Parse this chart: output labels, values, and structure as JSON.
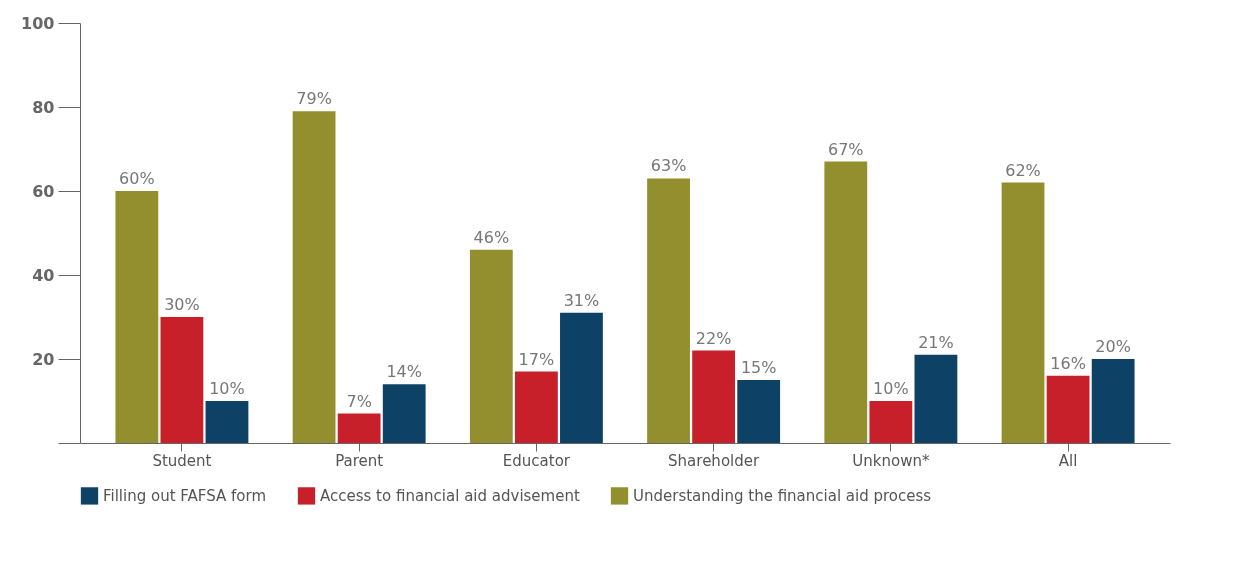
{
  "chart_data": {
    "type": "bar",
    "categories": [
      "Student",
      "Parent",
      "Educator",
      "Shareholder",
      "Unknown*",
      "All"
    ],
    "series": [
      {
        "name": "Filling out FAFSA form",
        "color": "#0e4166",
        "values": [
          10,
          14,
          31,
          15,
          21,
          20
        ],
        "value_labels": [
          "10%",
          "14%",
          "31%",
          "15%",
          "21%",
          "20%"
        ]
      },
      {
        "name": "Access to financial aid advisement",
        "color": "#c8202a",
        "values": [
          30,
          7,
          17,
          22,
          10,
          16
        ],
        "value_labels": [
          "30%",
          "7%",
          "17%",
          "22%",
          "10%",
          "16%"
        ]
      },
      {
        "name": "Understanding the financial aid process",
        "color": "#948f2e",
        "values": [
          60,
          79,
          46,
          63,
          67,
          62
        ],
        "value_labels": [
          "60%",
          "79%",
          "46%",
          "63%",
          "67%",
          "62%"
        ]
      }
    ],
    "ylim": [
      0,
      100
    ],
    "yticks": [
      {
        "value": 0,
        "label": null
      },
      20,
      40,
      60,
      80,
      100
    ],
    "grid": false,
    "legend": "bottom"
  }
}
